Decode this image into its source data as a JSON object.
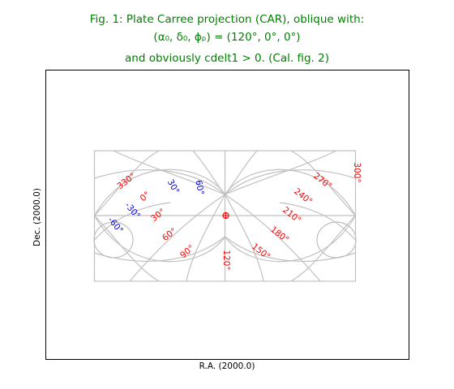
{
  "title": {
    "line1": "Fig. 1: Plate Carree projection (CAR), oblique with:",
    "line2": "(α₀, δ₀, ϕₚ) = (120°, 0°, 0°)",
    "line3": "and obviously cdelt1 > 0. (Cal. fig. 2)"
  },
  "xlabel": "R.A. (2000.0)",
  "ylabel": "Dec. (2000.0)",
  "colors": {
    "title": "#008000",
    "longitude_labels": "#ff0000",
    "latitude_labels": "#0000ff",
    "grid": "#c0c0c0",
    "marker": "#ff0000"
  },
  "longitude_labels": [
    "330°",
    "0°",
    "30°",
    "60°",
    "90°",
    "120°",
    "150°",
    "180°",
    "210°",
    "240°",
    "270°",
    "300°"
  ],
  "latitude_labels": [
    "30°",
    "60°",
    "-30°",
    "-60°"
  ]
}
